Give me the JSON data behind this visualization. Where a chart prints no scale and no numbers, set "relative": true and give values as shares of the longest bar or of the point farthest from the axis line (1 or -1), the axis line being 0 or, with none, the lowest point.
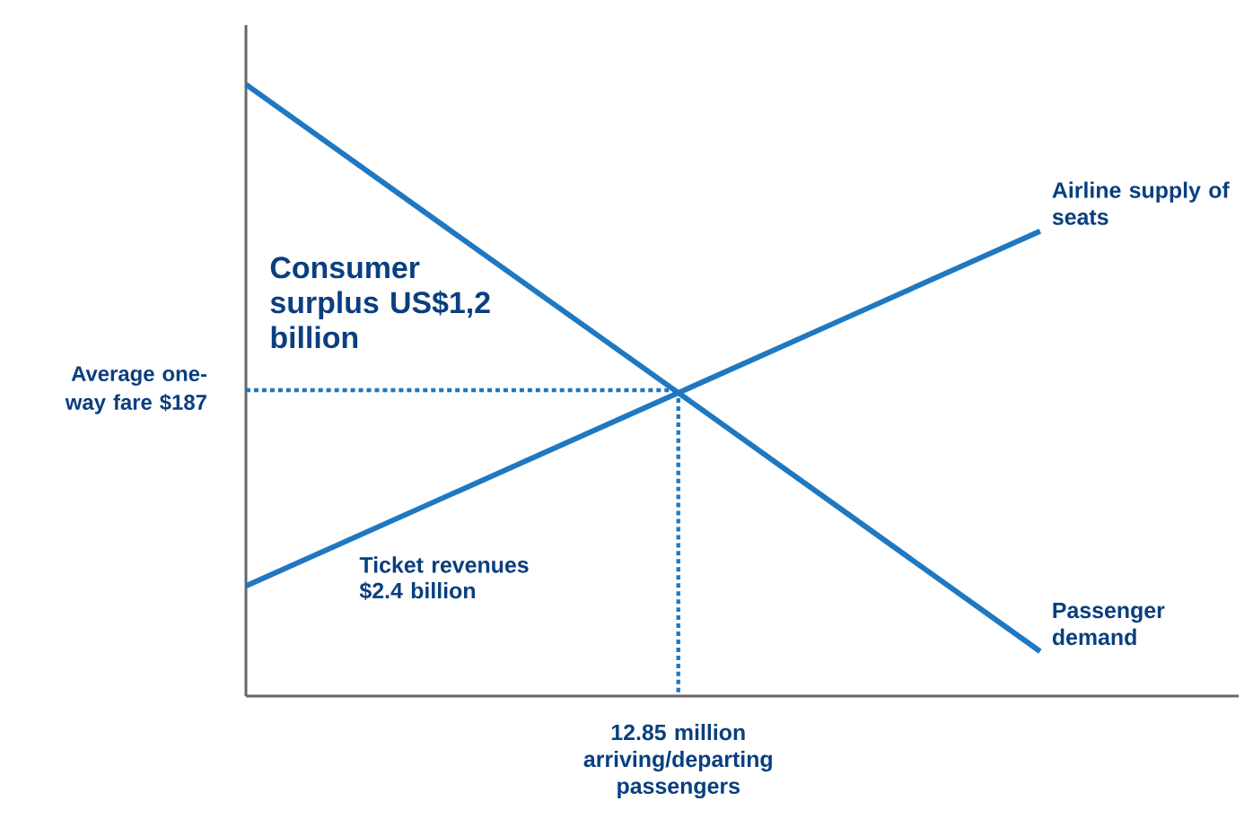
{
  "chart_data": {
    "type": "line",
    "relative": true,
    "categories": [
      null,
      null,
      null,
      null,
      null,
      null
    ],
    "series": [
      {
        "name": "Passenger demand",
        "color": "#1f78c1",
        "values": [
          1,
          0.768,
          0.537,
          0.305,
          0.073,
          null
        ]
      },
      {
        "name": "Airline supply of seats",
        "color": "#1f78c1",
        "values": [
          0.18,
          0.325,
          0.47,
          0.615,
          0.76,
          null
        ]
      }
    ],
    "ref_lines": [
      {
        "axis": "y",
        "value": 0.5,
        "label": "Average one-way fare $187",
        "color": "#1f78c1",
        "line_style": "dotted"
      }
    ],
    "annotations": [
      "Consumer surplus US$1,2 billion",
      "Ticket revenues $2.4 billion",
      "12.85 million arriving/departing passengers"
    ]
  }
}
